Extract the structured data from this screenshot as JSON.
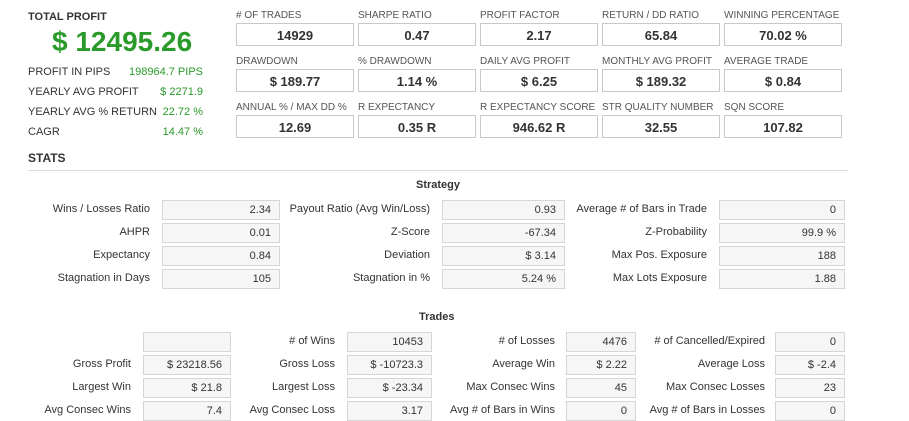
{
  "summary": {
    "total_profit_label": "TOTAL PROFIT",
    "total_profit_value": "$ 12495.26",
    "rows": [
      {
        "label": "PROFIT IN PIPS",
        "value": "198964.7 PIPS"
      },
      {
        "label": "YEARLY AVG PROFIT",
        "value": "$ 2271.9"
      },
      {
        "label": "YEARLY AVG % RETURN",
        "value": "22.72 %"
      },
      {
        "label": "CAGR",
        "value": "14.47 %"
      }
    ]
  },
  "metrics": [
    {
      "label": "# OF TRADES",
      "value": "14929"
    },
    {
      "label": "SHARPE RATIO",
      "value": "0.47"
    },
    {
      "label": "PROFIT FACTOR",
      "value": "2.17"
    },
    {
      "label": "RETURN / DD RATIO",
      "value": "65.84"
    },
    {
      "label": "WINNING PERCENTAGE",
      "value": "70.02 %"
    },
    {
      "label": "DRAWDOWN",
      "value": "$ 189.77"
    },
    {
      "label": "% DRAWDOWN",
      "value": "1.14 %"
    },
    {
      "label": "DAILY AVG PROFIT",
      "value": "$ 6.25"
    },
    {
      "label": "MONTHLY AVG PROFIT",
      "value": "$ 189.32"
    },
    {
      "label": "AVERAGE TRADE",
      "value": "$ 0.84"
    },
    {
      "label": "ANNUAL % / MAX DD %",
      "value": "12.69"
    },
    {
      "label": "R EXPECTANCY",
      "value": "0.35 R"
    },
    {
      "label": "R EXPECTANCY SCORE",
      "value": "946.62 R"
    },
    {
      "label": "STR QUALITY NUMBER",
      "value": "32.55"
    },
    {
      "label": "SQN SCORE",
      "value": "107.82"
    }
  ],
  "stats_title": "STATS",
  "strategy": {
    "title": "Strategy",
    "rows": [
      [
        {
          "label": "Wins / Losses Ratio",
          "value": "2.34"
        },
        {
          "label": "Payout Ratio (Avg Win/Loss)",
          "value": "0.93"
        },
        {
          "label": "Average # of Bars in Trade",
          "value": "0"
        }
      ],
      [
        {
          "label": "AHPR",
          "value": "0.01"
        },
        {
          "label": "Z-Score",
          "value": "-67.34"
        },
        {
          "label": "Z-Probability",
          "value": "99.9 %"
        }
      ],
      [
        {
          "label": "Expectancy",
          "value": "0.84"
        },
        {
          "label": "Deviation",
          "value": "$ 3.14"
        },
        {
          "label": "Max Pos. Exposure",
          "value": "188"
        }
      ],
      [
        {
          "label": "Stagnation in Days",
          "value": "105"
        },
        {
          "label": "Stagnation in %",
          "value": "5.24 %"
        },
        {
          "label": "Max Lots Exposure",
          "value": "1.88"
        }
      ]
    ]
  },
  "trades": {
    "title": "Trades",
    "rows": [
      [
        {
          "label": "",
          "value": ""
        },
        {
          "label": "# of Wins",
          "value": "10453"
        },
        {
          "label": "# of Losses",
          "value": "4476"
        },
        {
          "label": "# of Cancelled/Expired",
          "value": "0"
        }
      ],
      [
        {
          "label": "Gross Profit",
          "value": "$ 23218.56"
        },
        {
          "label": "Gross Loss",
          "value": "$ -10723.3"
        },
        {
          "label": "Average Win",
          "value": "$ 2.22"
        },
        {
          "label": "Average Loss",
          "value": "$ -2.4"
        }
      ],
      [
        {
          "label": "Largest Win",
          "value": "$ 21.8"
        },
        {
          "label": "Largest Loss",
          "value": "$ -23.34"
        },
        {
          "label": "Max Consec Wins",
          "value": "45"
        },
        {
          "label": "Max Consec Losses",
          "value": "23"
        }
      ],
      [
        {
          "label": "Avg Consec Wins",
          "value": "7.4"
        },
        {
          "label": "Avg Consec Loss",
          "value": "3.17"
        },
        {
          "label": "Avg # of Bars in Wins",
          "value": "0"
        },
        {
          "label": "Avg # of Bars in Losses",
          "value": "0"
        }
      ]
    ]
  }
}
